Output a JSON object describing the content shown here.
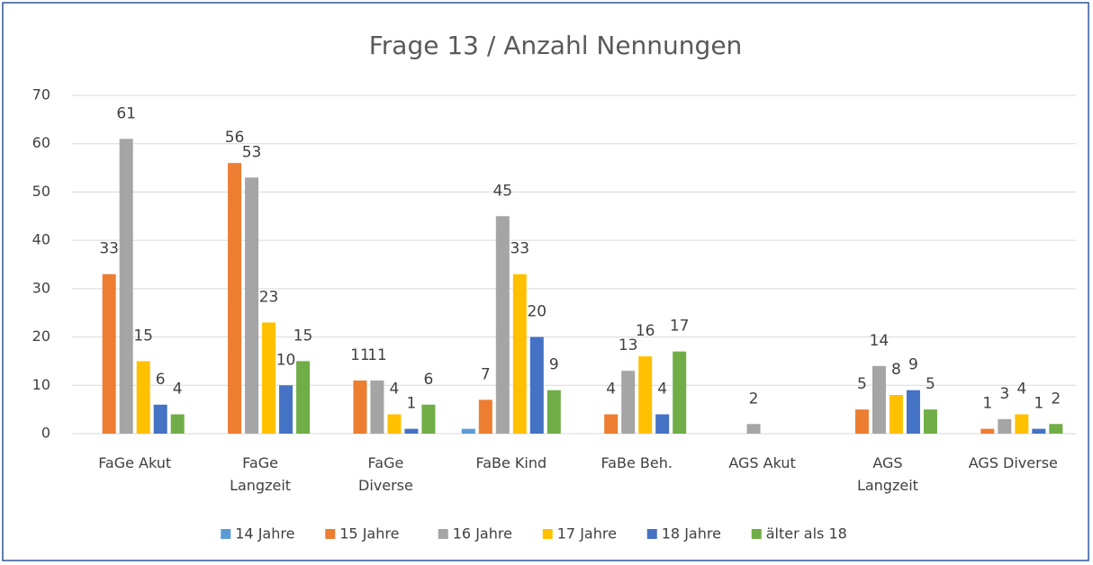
{
  "chart_data": {
    "type": "bar",
    "title": "Frage 13 /  Anzahl Nennungen",
    "categories": [
      "FaGe Akut",
      "FaGe\nLangzeit",
      "FaGe\nDiverse",
      "FaBe Kind",
      "FaBe Beh.",
      "AGS Akut",
      "AGS\nLangzeit",
      "AGS Diverse"
    ],
    "series": [
      {
        "name": "14 Jahre",
        "color": "#5b9bd5",
        "values": [
          0,
          0,
          0,
          1,
          0,
          0,
          0,
          0
        ],
        "show_labels": false
      },
      {
        "name": "15  Jahre",
        "color": "#ed7d31",
        "values": [
          33,
          56,
          11,
          7,
          4,
          0,
          5,
          1
        ],
        "show_labels": true
      },
      {
        "name": "16 Jahre",
        "color": "#a5a5a5",
        "values": [
          61,
          53,
          11,
          45,
          13,
          2,
          14,
          3
        ],
        "show_labels": true
      },
      {
        "name": "17 Jahre",
        "color": "#ffc000",
        "values": [
          15,
          23,
          4,
          33,
          16,
          0,
          8,
          4
        ],
        "show_labels": true
      },
      {
        "name": "18 Jahre",
        "color": "#4472c4",
        "values": [
          6,
          10,
          1,
          20,
          4,
          0,
          9,
          1
        ],
        "show_labels": true
      },
      {
        "name": "älter als 18",
        "color": "#70ad47",
        "values": [
          4,
          15,
          6,
          9,
          17,
          0,
          5,
          2
        ],
        "show_labels": true
      }
    ],
    "ylim": [
      0,
      70
    ],
    "yticks": [
      0,
      10,
      20,
      30,
      40,
      50,
      60,
      70
    ],
    "grid": true,
    "legend": "bottom"
  }
}
